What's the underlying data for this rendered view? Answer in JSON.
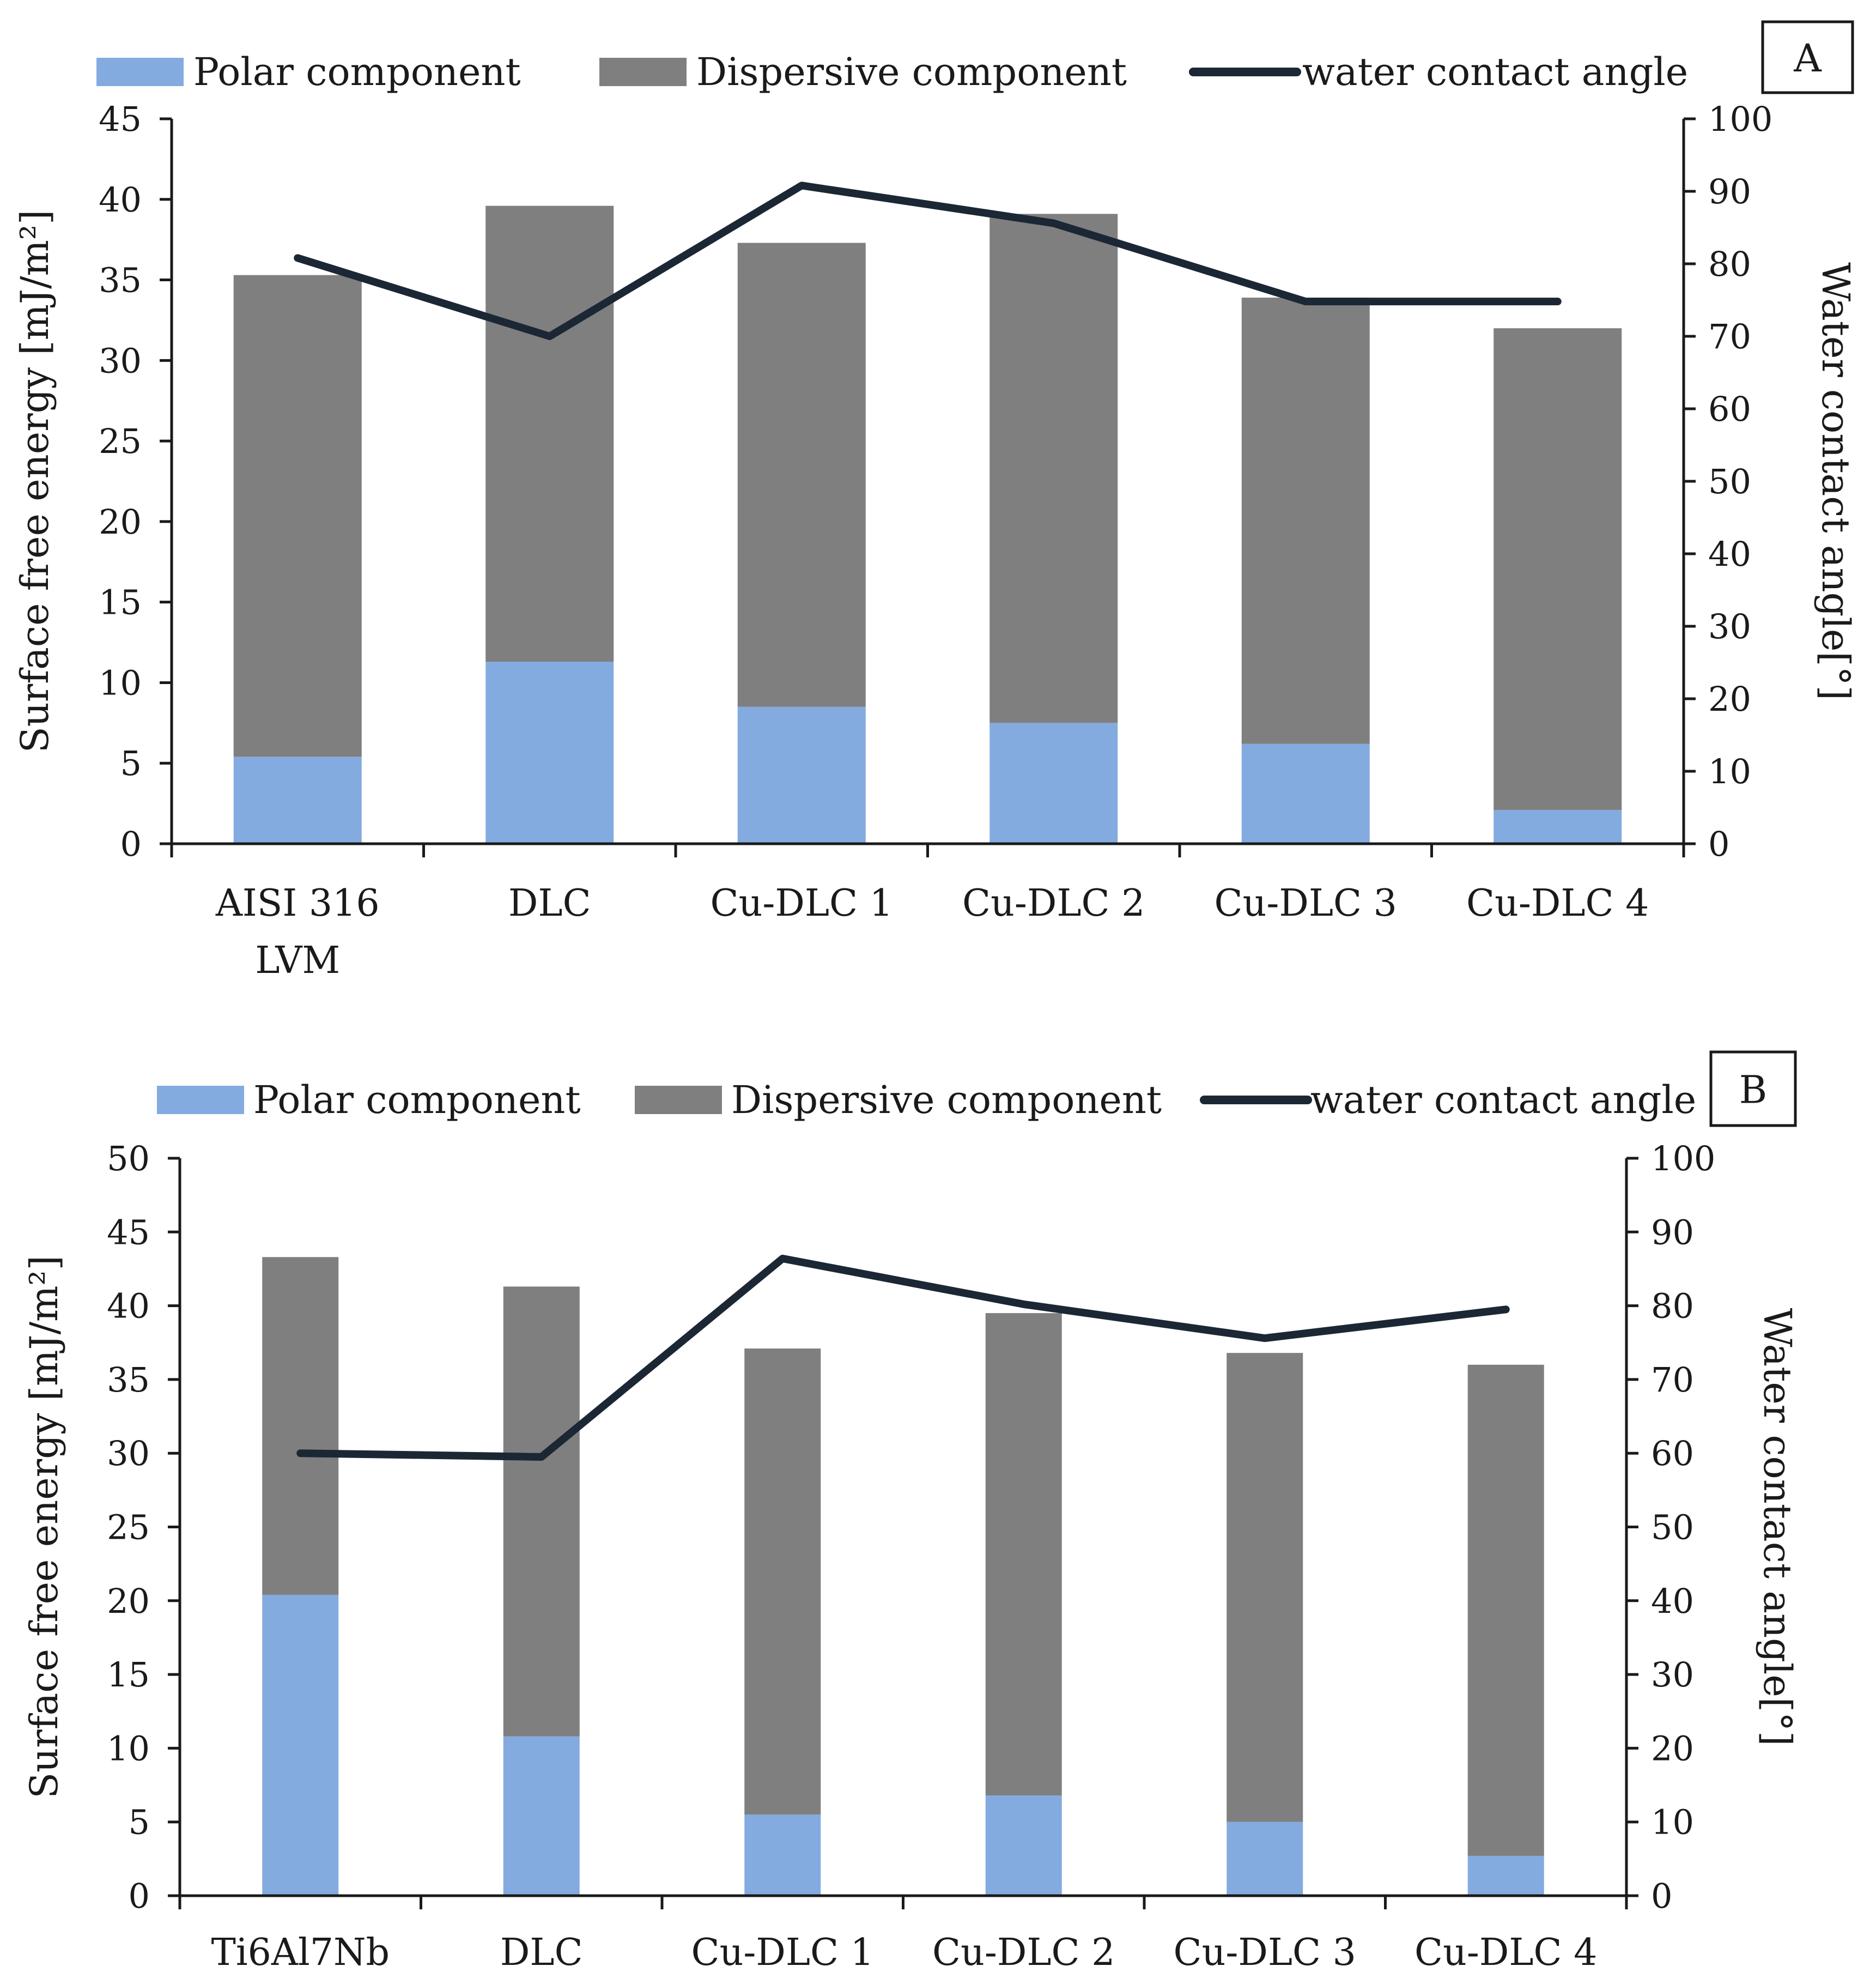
{
  "colors": {
    "polar": "#84abdf",
    "dispersive": "#7f7f7f",
    "line": "#1b2734",
    "axis": "#1a1a1a"
  },
  "chart_data": [
    {
      "type": "bar",
      "panel_label": "A",
      "stacked": true,
      "categories": [
        [
          "AISI 316",
          "LVM"
        ],
        [
          "DLC"
        ],
        [
          "Cu-DLC 1"
        ],
        [
          "Cu-DLC 2"
        ],
        [
          "Cu-DLC 3"
        ],
        [
          "Cu-DLC 4"
        ]
      ],
      "series": [
        {
          "name": "Polar component",
          "kind": "bar",
          "axis": "left",
          "color": "#84abdf",
          "values": [
            5.4,
            11.3,
            8.5,
            7.5,
            6.2,
            2.1
          ]
        },
        {
          "name": "Dispersive component",
          "kind": "bar",
          "axis": "left",
          "color": "#7f7f7f",
          "values": [
            29.9,
            28.3,
            28.8,
            31.6,
            27.7,
            29.9
          ]
        },
        {
          "name": "water contact angle",
          "kind": "line",
          "axis": "right",
          "color": "#1b2734",
          "values": [
            80.8,
            70.0,
            90.8,
            85.6,
            74.8,
            74.8
          ]
        }
      ],
      "ylabel": "Surface free energy [mJ/m²]",
      "y2label": "Water contact angle[°]",
      "ylim": [
        0,
        45
      ],
      "yticks": [
        0,
        5,
        10,
        15,
        20,
        25,
        30,
        35,
        40,
        45
      ],
      "y2lim": [
        0,
        100
      ],
      "y2ticks": [
        0,
        10,
        20,
        30,
        40,
        50,
        60,
        70,
        80,
        90,
        100
      ],
      "grid": false,
      "legend_position": "top"
    },
    {
      "type": "bar",
      "panel_label": "B",
      "stacked": true,
      "categories": [
        [
          "Ti6Al7Nb"
        ],
        [
          "DLC"
        ],
        [
          "Cu-DLC 1"
        ],
        [
          "Cu-DLC 2"
        ],
        [
          "Cu-DLC 3"
        ],
        [
          "Cu-DLC 4"
        ]
      ],
      "series": [
        {
          "name": "Polar component",
          "kind": "bar",
          "axis": "left",
          "color": "#84abdf",
          "values": [
            20.4,
            10.8,
            5.5,
            6.8,
            5.0,
            2.7
          ]
        },
        {
          "name": "Dispersive component",
          "kind": "bar",
          "axis": "left",
          "color": "#7f7f7f",
          "values": [
            22.9,
            30.5,
            31.6,
            32.7,
            31.8,
            33.3
          ]
        },
        {
          "name": "water contact angle",
          "kind": "line",
          "axis": "right",
          "color": "#1b2734",
          "values": [
            60.0,
            59.5,
            86.4,
            80.2,
            75.6,
            79.5
          ]
        }
      ],
      "ylabel": "Surface free energy [mJ/m²]",
      "y2label": "Water contact angle[°]",
      "ylim": [
        0,
        50
      ],
      "yticks": [
        0,
        5,
        10,
        15,
        20,
        25,
        30,
        35,
        40,
        45,
        50
      ],
      "y2lim": [
        0,
        100
      ],
      "y2ticks": [
        0,
        10,
        20,
        30,
        40,
        50,
        60,
        70,
        80,
        90,
        100
      ],
      "grid": false,
      "legend_position": "top"
    }
  ]
}
